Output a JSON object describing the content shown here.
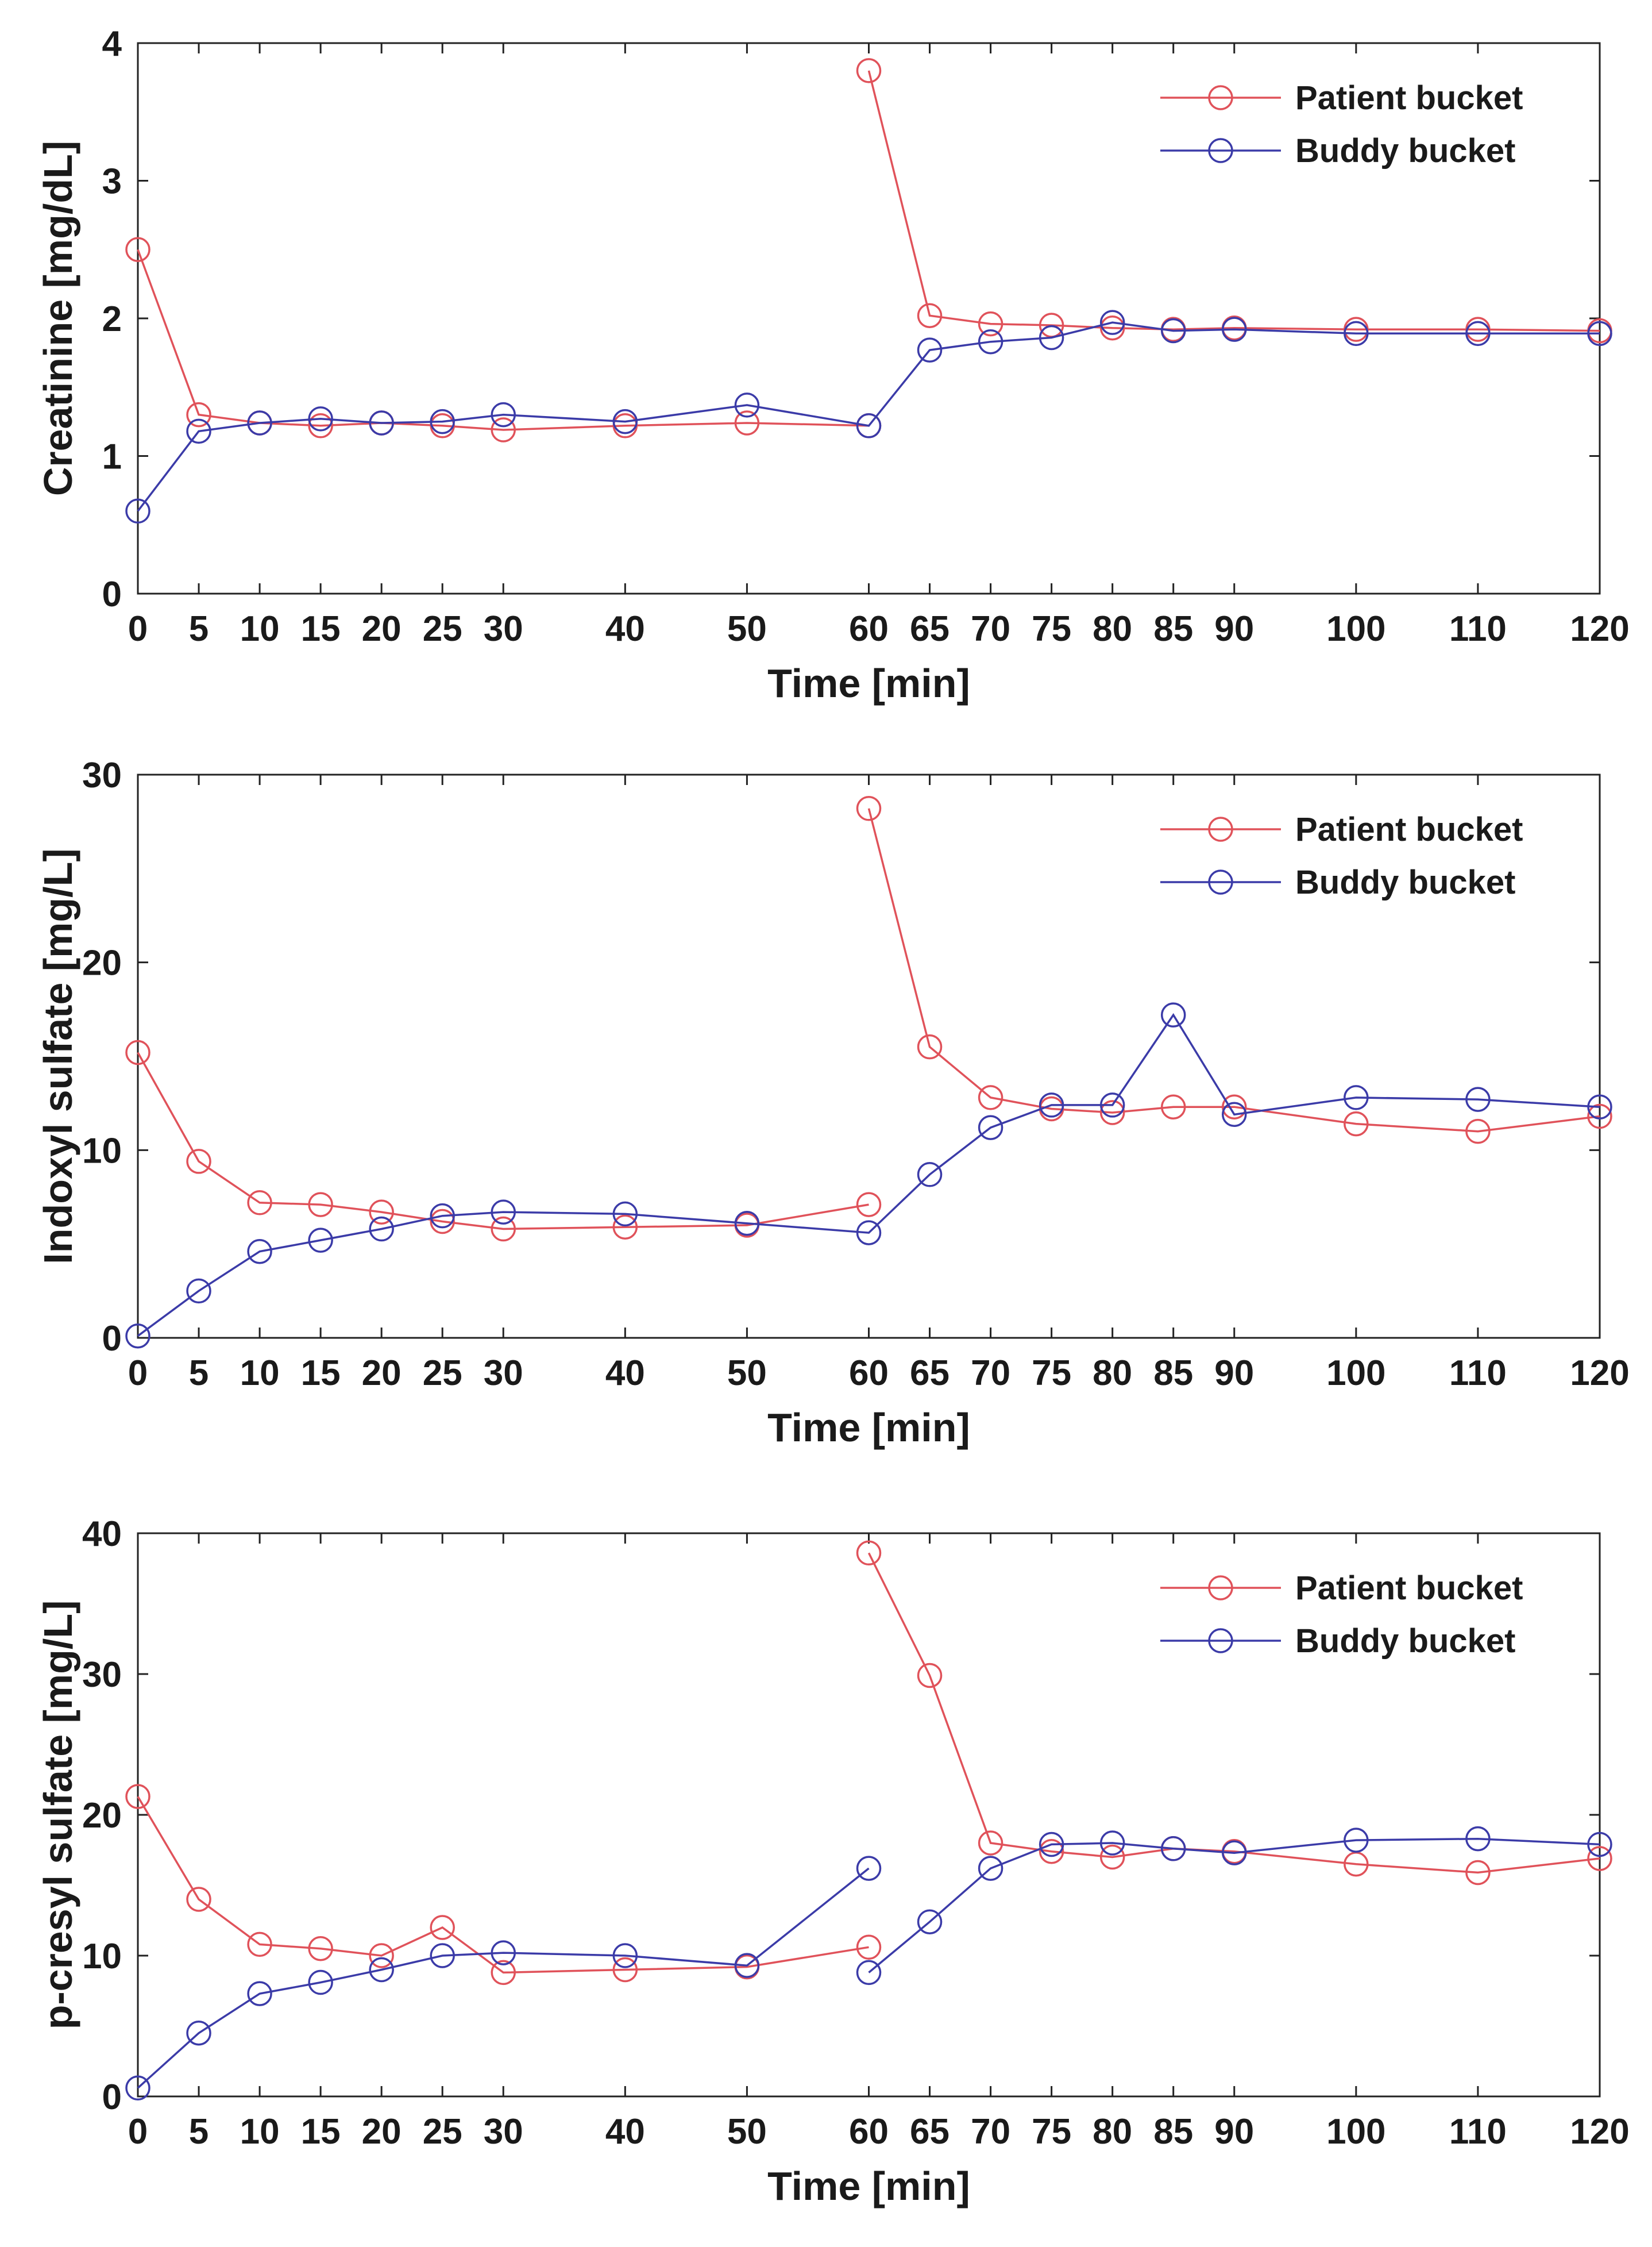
{
  "colors": {
    "patient": "#e0525a",
    "buddy": "#3b3ba8",
    "axis": "#222222",
    "background": "#ffffff"
  },
  "chart_data": [
    {
      "type": "line",
      "id": "creatinine",
      "xlabel": "Time [min]",
      "ylabel": "Creatinine [mg/dL]",
      "xlim": [
        0,
        120
      ],
      "ylim": [
        0,
        4
      ],
      "xticks": [
        0,
        5,
        10,
        15,
        20,
        25,
        30,
        40,
        50,
        60,
        65,
        70,
        75,
        80,
        85,
        90,
        100,
        110,
        120
      ],
      "yticks": [
        0,
        1,
        2,
        3,
        4
      ],
      "grid": false,
      "legend": "top-right",
      "series": [
        {
          "name": "Patient bucket",
          "color_key": "patient",
          "segments": [
            [
              [
                0,
                2.5
              ],
              [
                5,
                1.3
              ],
              [
                10,
                1.24
              ],
              [
                15,
                1.22
              ],
              [
                20,
                1.24
              ],
              [
                25,
                1.22
              ],
              [
                30,
                1.19
              ],
              [
                40,
                1.22
              ],
              [
                50,
                1.24
              ],
              [
                60,
                1.22
              ]
            ],
            [
              [
                60,
                3.8
              ],
              [
                65,
                2.02
              ],
              [
                70,
                1.96
              ],
              [
                75,
                1.95
              ],
              [
                80,
                1.93
              ],
              [
                85,
                1.92
              ],
              [
                90,
                1.93
              ],
              [
                100,
                1.92
              ],
              [
                110,
                1.92
              ],
              [
                120,
                1.91
              ]
            ]
          ]
        },
        {
          "name": "Buddy bucket",
          "color_key": "buddy",
          "segments": [
            [
              [
                0,
                0.6
              ],
              [
                5,
                1.18
              ],
              [
                10,
                1.24
              ],
              [
                15,
                1.27
              ],
              [
                20,
                1.24
              ],
              [
                25,
                1.25
              ],
              [
                30,
                1.3
              ],
              [
                40,
                1.25
              ],
              [
                50,
                1.37
              ],
              [
                60,
                1.22
              ],
              [
                65,
                1.77
              ],
              [
                70,
                1.83
              ],
              [
                75,
                1.86
              ],
              [
                80,
                1.97
              ],
              [
                85,
                1.91
              ],
              [
                90,
                1.92
              ],
              [
                100,
                1.89
              ],
              [
                110,
                1.89
              ],
              [
                120,
                1.89
              ]
            ]
          ]
        }
      ]
    },
    {
      "type": "line",
      "id": "indoxyl",
      "xlabel": "Time [min]",
      "ylabel": "Indoxyl sulfate [mg/L]",
      "xlim": [
        0,
        120
      ],
      "ylim": [
        0,
        30
      ],
      "xticks": [
        0,
        5,
        10,
        15,
        20,
        25,
        30,
        40,
        50,
        60,
        65,
        70,
        75,
        80,
        85,
        90,
        100,
        110,
        120
      ],
      "yticks": [
        0,
        10,
        20,
        30
      ],
      "grid": false,
      "legend": "top-right",
      "series": [
        {
          "name": "Patient bucket",
          "color_key": "patient",
          "segments": [
            [
              [
                0,
                15.2
              ],
              [
                5,
                9.4
              ],
              [
                10,
                7.2
              ],
              [
                15,
                7.1
              ],
              [
                20,
                6.7
              ],
              [
                25,
                6.2
              ],
              [
                30,
                5.8
              ],
              [
                40,
                5.9
              ],
              [
                50,
                6.0
              ],
              [
                60,
                7.1
              ]
            ],
            [
              [
                60,
                28.2
              ],
              [
                65,
                15.5
              ],
              [
                70,
                12.8
              ],
              [
                75,
                12.2
              ],
              [
                80,
                12.0
              ],
              [
                85,
                12.3
              ],
              [
                90,
                12.3
              ],
              [
                100,
                11.4
              ],
              [
                110,
                11.0
              ],
              [
                120,
                11.8
              ]
            ]
          ]
        },
        {
          "name": "Buddy bucket",
          "color_key": "buddy",
          "segments": [
            [
              [
                0,
                0.1
              ],
              [
                5,
                2.5
              ],
              [
                10,
                4.6
              ],
              [
                15,
                5.2
              ],
              [
                20,
                5.8
              ],
              [
                25,
                6.5
              ],
              [
                30,
                6.7
              ],
              [
                40,
                6.6
              ],
              [
                50,
                6.1
              ],
              [
                60,
                5.6
              ],
              [
                65,
                8.7
              ],
              [
                70,
                11.2
              ],
              [
                75,
                12.4
              ],
              [
                80,
                12.4
              ],
              [
                85,
                17.2
              ],
              [
                90,
                11.9
              ],
              [
                100,
                12.8
              ],
              [
                110,
                12.7
              ],
              [
                120,
                12.3
              ]
            ]
          ]
        }
      ]
    },
    {
      "type": "line",
      "id": "pcresyl",
      "xlabel": "Time [min]",
      "ylabel": "p-cresyl sulfate [mg/L]",
      "xlim": [
        0,
        120
      ],
      "ylim": [
        0,
        40
      ],
      "xticks": [
        0,
        5,
        10,
        15,
        20,
        25,
        30,
        40,
        50,
        60,
        65,
        70,
        75,
        80,
        85,
        90,
        100,
        110,
        120
      ],
      "yticks": [
        0,
        10,
        20,
        30,
        40
      ],
      "grid": false,
      "legend": "top-right",
      "series": [
        {
          "name": "Patient bucket",
          "color_key": "patient",
          "segments": [
            [
              [
                0,
                21.3
              ],
              [
                5,
                14.0
              ],
              [
                10,
                10.8
              ],
              [
                15,
                10.5
              ],
              [
                20,
                10.0
              ],
              [
                25,
                12.0
              ],
              [
                30,
                8.8
              ],
              [
                40,
                9.0
              ],
              [
                50,
                9.2
              ],
              [
                60,
                10.6
              ]
            ],
            [
              [
                60,
                38.6
              ],
              [
                65,
                29.9
              ],
              [
                70,
                18.0
              ],
              [
                75,
                17.4
              ],
              [
                80,
                17.0
              ],
              [
                85,
                17.6
              ],
              [
                90,
                17.4
              ],
              [
                100,
                16.5
              ],
              [
                110,
                15.9
              ],
              [
                120,
                16.9
              ]
            ]
          ]
        },
        {
          "name": "Buddy bucket",
          "color_key": "buddy",
          "segments": [
            [
              [
                0,
                0.6
              ],
              [
                5,
                4.5
              ],
              [
                10,
                7.3
              ],
              [
                15,
                8.1
              ],
              [
                20,
                9.0
              ],
              [
                25,
                10.0
              ],
              [
                30,
                10.2
              ],
              [
                40,
                10.0
              ],
              [
                50,
                9.3
              ],
              [
                60,
                16.2
              ]
            ],
            [
              [
                60,
                8.8
              ],
              [
                65,
                12.4
              ],
              [
                70,
                16.2
              ],
              [
                75,
                17.9
              ],
              [
                80,
                18.0
              ],
              [
                85,
                17.6
              ],
              [
                90,
                17.3
              ],
              [
                100,
                18.2
              ],
              [
                110,
                18.3
              ],
              [
                120,
                17.9
              ]
            ]
          ]
        }
      ]
    }
  ]
}
